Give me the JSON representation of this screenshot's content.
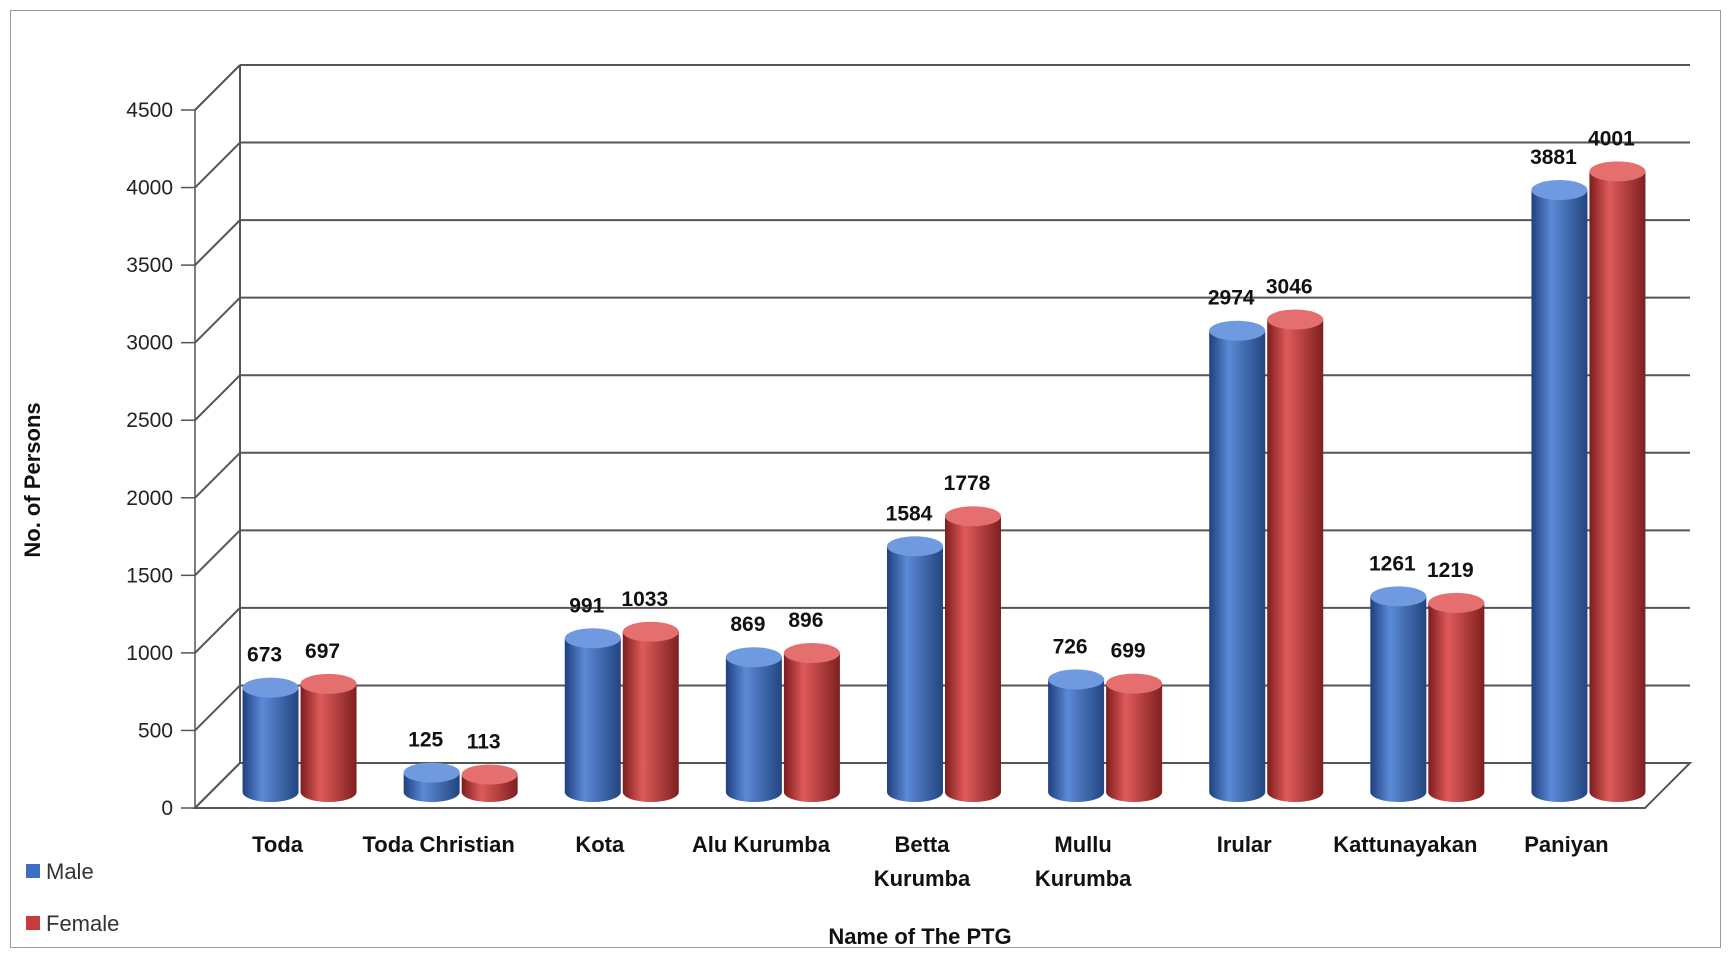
{
  "chart_data": {
    "type": "bar",
    "title": "",
    "xlabel": "Name of The PTG",
    "ylabel": "No. of Persons",
    "ylim": [
      0,
      4500
    ],
    "yticks": [
      0,
      500,
      1000,
      1500,
      2000,
      2500,
      3000,
      3500,
      4000,
      4500
    ],
    "grid": true,
    "legend_position": "bottom-left",
    "categories": [
      [
        "Toda"
      ],
      [
        "Toda Christian"
      ],
      [
        "Kota"
      ],
      [
        "Alu Kurumba"
      ],
      [
        "Betta",
        "Kurumba"
      ],
      [
        "Mullu",
        "Kurumba"
      ],
      [
        "Irular"
      ],
      [
        "Kattunayakan"
      ],
      [
        "Paniyan"
      ]
    ],
    "series": [
      {
        "name": "Male",
        "color": "#3f6fc4",
        "values": [
          673,
          125,
          991,
          869,
          1584,
          726,
          2974,
          1261,
          3881
        ]
      },
      {
        "name": "Female",
        "color": "#c63b3b",
        "values": [
          697,
          113,
          1033,
          896,
          1778,
          699,
          3046,
          1219,
          4001
        ]
      }
    ]
  }
}
